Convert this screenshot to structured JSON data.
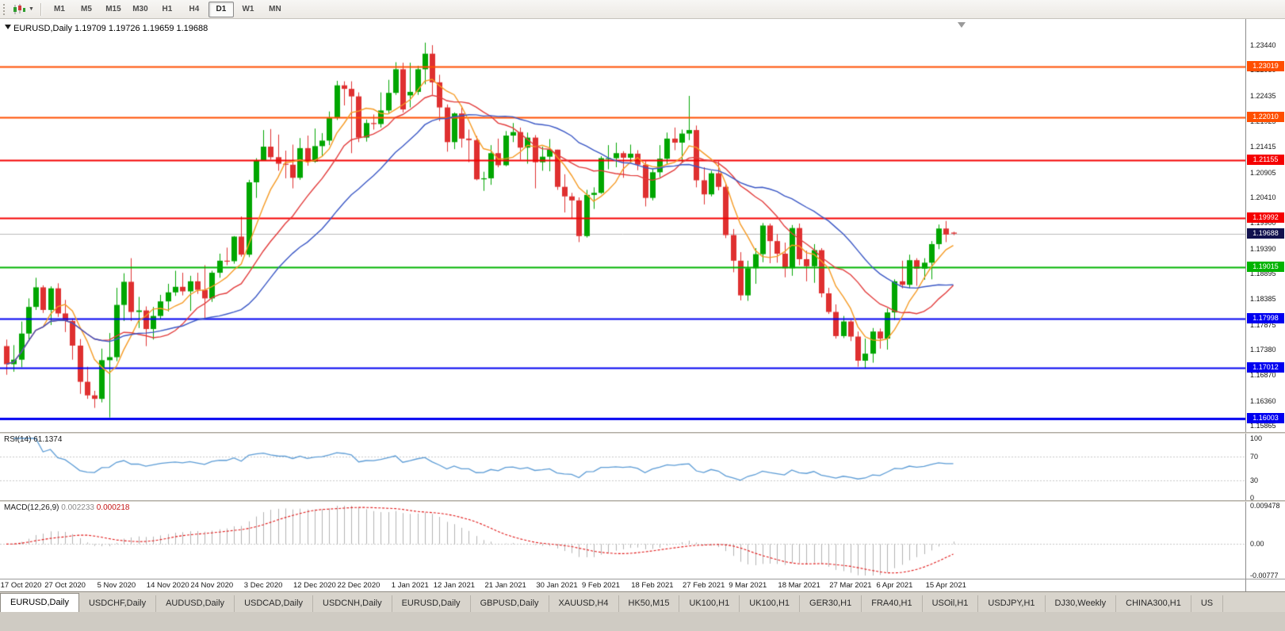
{
  "toolbar": {
    "timeframes": [
      "M1",
      "M5",
      "M15",
      "M30",
      "H1",
      "H4",
      "D1",
      "W1",
      "MN"
    ],
    "active_timeframe": "D1"
  },
  "chart": {
    "title": "EURUSD,Daily",
    "ohlc": "1.19709 1.19726 1.19659 1.19688"
  },
  "chart_data": {
    "type": "candlestick",
    "symbol": "EURUSD",
    "period": "Daily",
    "ylim": [
      1.1574,
      1.2396
    ],
    "grid": false,
    "bull_color": "#00a600",
    "bear_color": "#df3030",
    "current_price_line_color": "#bababa",
    "y_ticks": [
      "1.23440",
      "1.22950",
      "1.22435",
      "1.21925",
      "1.21415",
      "1.20905",
      "1.20410",
      "1.19900",
      "1.19390",
      "1.18895",
      "1.18385",
      "1.17875",
      "1.17380",
      "1.16870",
      "1.16360",
      "1.15865"
    ],
    "x_labels": [
      {
        "text": "17 Oct 2020",
        "i": 2
      },
      {
        "text": "27 Oct 2020",
        "i": 8
      },
      {
        "text": "5 Nov 2020",
        "i": 15
      },
      {
        "text": "14 Nov 2020",
        "i": 22
      },
      {
        "text": "24 Nov 2020",
        "i": 28
      },
      {
        "text": "3 Dec 2020",
        "i": 35
      },
      {
        "text": "12 Dec 2020",
        "i": 42
      },
      {
        "text": "22 Dec 2020",
        "i": 48
      },
      {
        "text": "1 Jan 2021",
        "i": 55
      },
      {
        "text": "12 Jan 2021",
        "i": 61
      },
      {
        "text": "21 Jan 2021",
        "i": 68
      },
      {
        "text": "30 Jan 2021",
        "i": 75
      },
      {
        "text": "9 Feb 2021",
        "i": 81
      },
      {
        "text": "18 Feb 2021",
        "i": 88
      },
      {
        "text": "27 Feb 2021",
        "i": 95
      },
      {
        "text": "9 Mar 2021",
        "i": 101
      },
      {
        "text": "18 Mar 2021",
        "i": 108
      },
      {
        "text": "27 Mar 2021",
        "i": 115
      },
      {
        "text": "6 Apr 2021",
        "i": 121
      },
      {
        "text": "15 Apr 2021",
        "i": 128
      }
    ],
    "levels": [
      {
        "value": 1.23019,
        "label": "1.23019",
        "color": "#ff4f00",
        "width": 2
      },
      {
        "value": 1.2201,
        "label": "1.22010",
        "color": "#ff4f00",
        "width": 2
      },
      {
        "value": 1.21155,
        "label": "1.21155",
        "color": "#f50000",
        "width": 2
      },
      {
        "value": 1.19992,
        "label": "1.19992",
        "color": "#f50000",
        "width": 2
      },
      {
        "value": 1.19015,
        "label": "1.19015",
        "color": "#00b400",
        "width": 2
      },
      {
        "value": 1.17998,
        "label": "1.17998",
        "color": "#0000f0",
        "width": 2
      },
      {
        "value": 1.17012,
        "label": "1.17012",
        "color": "#0000f0",
        "width": 2
      },
      {
        "value": 1.16003,
        "label": "1.16003",
        "color": "#0000f0",
        "width": 3
      }
    ],
    "current_price": {
      "value": 1.19688,
      "label": "1.19688",
      "color": "#11114e"
    },
    "moving_averages": [
      {
        "period": 6,
        "color": "#f59a23"
      },
      {
        "period": 14,
        "color": "#e23b3b"
      },
      {
        "period": 25,
        "color": "#3a57c5"
      }
    ],
    "candles": [
      [
        1.1745,
        1.1758,
        1.1688,
        1.1709
      ],
      [
        1.1709,
        1.1747,
        1.1694,
        1.1718
      ],
      [
        1.1718,
        1.1794,
        1.1703,
        1.177
      ],
      [
        1.177,
        1.184,
        1.1757,
        1.1823
      ],
      [
        1.1823,
        1.1881,
        1.1817,
        1.1862
      ],
      [
        1.1862,
        1.1866,
        1.1811,
        1.1817
      ],
      [
        1.1817,
        1.1864,
        1.1787,
        1.186
      ],
      [
        1.186,
        1.187,
        1.1803,
        1.181
      ],
      [
        1.181,
        1.1837,
        1.1773,
        1.1795
      ],
      [
        1.1795,
        1.18,
        1.1718,
        1.1746
      ],
      [
        1.1746,
        1.1759,
        1.165,
        1.1674
      ],
      [
        1.1674,
        1.1704,
        1.164,
        1.1647
      ],
      [
        1.1647,
        1.1656,
        1.1622,
        1.164
      ],
      [
        1.164,
        1.174,
        1.1633,
        1.1717
      ],
      [
        1.1717,
        1.1771,
        1.1603,
        1.1723
      ],
      [
        1.1723,
        1.1861,
        1.1715,
        1.1827
      ],
      [
        1.1827,
        1.189,
        1.1795,
        1.1873
      ],
      [
        1.1873,
        1.192,
        1.1795,
        1.1813
      ],
      [
        1.1813,
        1.1843,
        1.1781,
        1.1816
      ],
      [
        1.1816,
        1.1824,
        1.1745,
        1.1779
      ],
      [
        1.1779,
        1.1823,
        1.1758,
        1.1805
      ],
      [
        1.1805,
        1.1847,
        1.1799,
        1.1834
      ],
      [
        1.1834,
        1.1869,
        1.1814,
        1.1852
      ],
      [
        1.1852,
        1.1895,
        1.1845,
        1.1863
      ],
      [
        1.1863,
        1.1891,
        1.1846,
        1.1854
      ],
      [
        1.1854,
        1.1885,
        1.1815,
        1.1874
      ],
      [
        1.1874,
        1.1891,
        1.1849,
        1.1857
      ],
      [
        1.1857,
        1.1906,
        1.18,
        1.184
      ],
      [
        1.184,
        1.1895,
        1.1833,
        1.1891
      ],
      [
        1.1891,
        1.1929,
        1.1881,
        1.1915
      ],
      [
        1.1915,
        1.1941,
        1.1906,
        1.1914
      ],
      [
        1.1914,
        1.1964,
        1.1909,
        1.1963
      ],
      [
        1.1963,
        1.2003,
        1.1923,
        1.1927
      ],
      [
        1.1927,
        1.2076,
        1.1922,
        1.2071
      ],
      [
        1.2071,
        1.2119,
        1.204,
        1.2115
      ],
      [
        1.2115,
        1.2175,
        1.2114,
        1.2142
      ],
      [
        1.2142,
        1.2177,
        1.2116,
        1.2121
      ],
      [
        1.2121,
        1.2166,
        1.2094,
        1.2108
      ],
      [
        1.2108,
        1.2134,
        1.2079,
        1.2106
      ],
      [
        1.2106,
        1.2146,
        1.2059,
        1.208
      ],
      [
        1.208,
        1.2159,
        1.2076,
        1.2139
      ],
      [
        1.2139,
        1.2164,
        1.2104,
        1.2112
      ],
      [
        1.2112,
        1.2178,
        1.211,
        1.2143
      ],
      [
        1.2143,
        1.2169,
        1.2123,
        1.2154
      ],
      [
        1.2154,
        1.2212,
        1.2145,
        1.2199
      ],
      [
        1.2199,
        1.2273,
        1.2195,
        1.2264
      ],
      [
        1.2264,
        1.2272,
        1.2224,
        1.2257
      ],
      [
        1.2257,
        1.2272,
        1.2129,
        1.2242
      ],
      [
        1.2242,
        1.225,
        1.2151,
        1.216
      ],
      [
        1.216,
        1.2196,
        1.2152,
        1.2189
      ],
      [
        1.2189,
        1.2206,
        1.2176,
        1.2187
      ],
      [
        1.2187,
        1.225,
        1.218,
        1.2214
      ],
      [
        1.2214,
        1.2275,
        1.2208,
        1.2249
      ],
      [
        1.2249,
        1.231,
        1.2245,
        1.2296
      ],
      [
        1.2296,
        1.2309,
        1.221,
        1.2216
      ],
      [
        1.2244,
        1.2309,
        1.222,
        1.2251
      ],
      [
        1.2251,
        1.2303,
        1.2245,
        1.2296
      ],
      [
        1.2296,
        1.2349,
        1.2266,
        1.2327
      ],
      [
        1.2327,
        1.2344,
        1.2245,
        1.227
      ],
      [
        1.227,
        1.2285,
        1.2193,
        1.222
      ],
      [
        1.222,
        1.2226,
        1.2132,
        1.2151
      ],
      [
        1.2151,
        1.221,
        1.2137,
        1.2208
      ],
      [
        1.2208,
        1.2223,
        1.214,
        1.2158
      ],
      [
        1.2158,
        1.2176,
        1.2111,
        1.2155
      ],
      [
        1.2155,
        1.2163,
        1.2075,
        1.2077
      ],
      [
        1.2077,
        1.2092,
        1.2054,
        1.2079
      ],
      [
        1.2079,
        1.2145,
        1.2066,
        1.2129
      ],
      [
        1.2129,
        1.2158,
        1.2101,
        1.2105
      ],
      [
        1.2105,
        1.2173,
        1.2103,
        1.2164
      ],
      [
        1.2164,
        1.2189,
        1.2151,
        1.2171
      ],
      [
        1.2171,
        1.218,
        1.2116,
        1.214
      ],
      [
        1.214,
        1.217,
        1.2108,
        1.216
      ],
      [
        1.216,
        1.2165,
        1.2059,
        1.2111
      ],
      [
        1.2111,
        1.2142,
        1.2094,
        1.2122
      ],
      [
        1.2122,
        1.2157,
        1.2093,
        1.2136
      ],
      [
        1.2136,
        1.2136,
        1.2056,
        1.2062
      ],
      [
        1.2062,
        1.2087,
        1.2011,
        1.2043
      ],
      [
        1.2043,
        1.205,
        1.1999,
        1.2035
      ],
      [
        1.2035,
        1.2041,
        1.1952,
        1.1964
      ],
      [
        1.1964,
        1.2056,
        1.1961,
        1.2046
      ],
      [
        1.2046,
        1.2061,
        1.2018,
        1.205
      ],
      [
        1.205,
        1.2123,
        1.2048,
        1.2119
      ],
      [
        1.2119,
        1.2145,
        1.2097,
        1.2119
      ],
      [
        1.2119,
        1.215,
        1.2101,
        1.2129
      ],
      [
        1.2129,
        1.2133,
        1.208,
        1.212
      ],
      [
        1.212,
        1.2146,
        1.211,
        1.2128
      ],
      [
        1.2128,
        1.2135,
        1.2095,
        1.2106
      ],
      [
        1.2106,
        1.2113,
        1.2023,
        1.204
      ],
      [
        1.204,
        1.2098,
        1.2035,
        1.2091
      ],
      [
        1.2091,
        1.2145,
        1.2081,
        1.2118
      ],
      [
        1.2118,
        1.217,
        1.2107,
        1.2158
      ],
      [
        1.2158,
        1.218,
        1.2135,
        1.215
      ],
      [
        1.215,
        1.2176,
        1.211,
        1.2168
      ],
      [
        1.2168,
        1.2243,
        1.2155,
        1.2175
      ],
      [
        1.2175,
        1.2184,
        1.2061,
        1.2075
      ],
      [
        1.2075,
        1.2101,
        1.2027,
        1.2047
      ],
      [
        1.2047,
        1.2094,
        1.2043,
        1.2089
      ],
      [
        1.2089,
        1.2113,
        1.2055,
        1.2062
      ],
      [
        1.2062,
        1.2069,
        1.196,
        1.1966
      ],
      [
        1.1966,
        1.1978,
        1.1892,
        1.1915
      ],
      [
        1.1915,
        1.1932,
        1.1836,
        1.1846
      ],
      [
        1.1846,
        1.1915,
        1.1835,
        1.19
      ],
      [
        1.19,
        1.194,
        1.1869,
        1.1928
      ],
      [
        1.1928,
        1.199,
        1.1912,
        1.1985
      ],
      [
        1.1985,
        1.1989,
        1.191,
        1.1954
      ],
      [
        1.1954,
        1.1968,
        1.1911,
        1.1929
      ],
      [
        1.1929,
        1.1951,
        1.1882,
        1.19
      ],
      [
        1.19,
        1.1986,
        1.1885,
        1.198
      ],
      [
        1.198,
        1.1989,
        1.1906,
        1.1918
      ],
      [
        1.1918,
        1.1935,
        1.1874,
        1.1904
      ],
      [
        1.1904,
        1.1948,
        1.1871,
        1.1936
      ],
      [
        1.1936,
        1.194,
        1.1842,
        1.185
      ],
      [
        1.185,
        1.1861,
        1.1809,
        1.1813
      ],
      [
        1.1813,
        1.1828,
        1.176,
        1.1765
      ],
      [
        1.1765,
        1.1805,
        1.1761,
        1.1794
      ],
      [
        1.1794,
        1.1797,
        1.1755,
        1.1764
      ],
      [
        1.1764,
        1.1774,
        1.1704,
        1.1716
      ],
      [
        1.1716,
        1.176,
        1.17,
        1.173
      ],
      [
        1.173,
        1.1781,
        1.1712,
        1.1774
      ],
      [
        1.1774,
        1.178,
        1.174,
        1.176
      ],
      [
        1.176,
        1.182,
        1.1738,
        1.1812
      ],
      [
        1.1812,
        1.1878,
        1.1797,
        1.1874
      ],
      [
        1.1874,
        1.1915,
        1.186,
        1.1867
      ],
      [
        1.1867,
        1.1927,
        1.186,
        1.1916
      ],
      [
        1.1916,
        1.192,
        1.1865,
        1.1899
      ],
      [
        1.1899,
        1.192,
        1.1877,
        1.1911
      ],
      [
        1.1911,
        1.1954,
        1.1878,
        1.1948
      ],
      [
        1.1948,
        1.1987,
        1.1938,
        1.1979
      ],
      [
        1.1979,
        1.1994,
        1.1952,
        1.1967
      ],
      [
        1.19709,
        1.19726,
        1.19659,
        1.19688
      ]
    ],
    "rsi": {
      "label": "RSI(14)",
      "value": "61.1374",
      "period": 14,
      "levels": [
        70,
        30
      ],
      "ticks": [
        "100",
        "70",
        "30",
        "0"
      ],
      "color": "#5b9bd5"
    },
    "macd": {
      "label": "MACD(12,26,9)",
      "value_main": "0.002233",
      "value_signal": "0.000218",
      "fast": 12,
      "slow": 26,
      "signal_period": 9,
      "ylim": [
        -0.00777,
        0.009478
      ],
      "ticks": [
        "0.009478",
        "0.00",
        "-0.00777"
      ],
      "hist_color": "#b2b2b2",
      "signal_color": "#e01717"
    }
  },
  "tabs": [
    {
      "label": "EURUSD,Daily",
      "active": true
    },
    {
      "label": "USDCHF,Daily",
      "active": false
    },
    {
      "label": "AUDUSD,Daily",
      "active": false
    },
    {
      "label": "USDCAD,Daily",
      "active": false
    },
    {
      "label": "USDCNH,Daily",
      "active": false
    },
    {
      "label": "EURUSD,Daily",
      "active": false
    },
    {
      "label": "GBPUSD,Daily",
      "active": false
    },
    {
      "label": "XAUUSD,H4",
      "active": false
    },
    {
      "label": "HK50,M15",
      "active": false
    },
    {
      "label": "UK100,H1",
      "active": false
    },
    {
      "label": "UK100,H1",
      "active": false
    },
    {
      "label": "GER30,H1",
      "active": false
    },
    {
      "label": "FRA40,H1",
      "active": false
    },
    {
      "label": "USOil,H1",
      "active": false
    },
    {
      "label": "USDJPY,H1",
      "active": false
    },
    {
      "label": "DJ30,Weekly",
      "active": false
    },
    {
      "label": "CHINA300,H1",
      "active": false
    },
    {
      "label": "US",
      "active": false
    }
  ]
}
